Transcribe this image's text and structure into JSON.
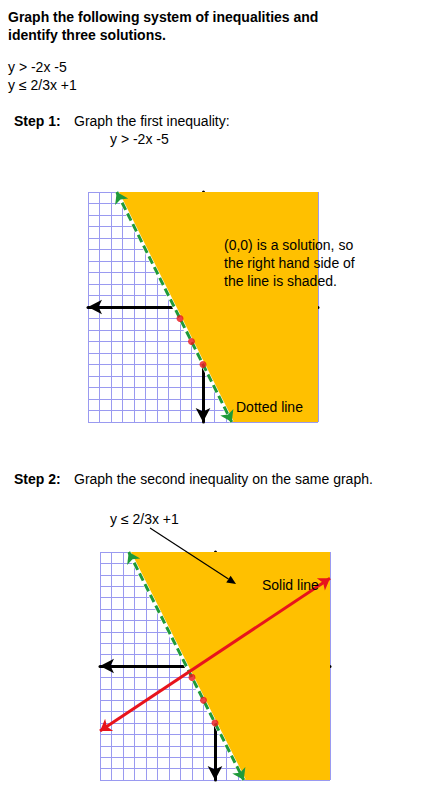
{
  "header": {
    "title": "Graph the following system of inequalities and identify three solutions.",
    "inequalities": [
      "y > -2x -5",
      "y ≤ 2/3x +1"
    ]
  },
  "steps": [
    {
      "label": "Step 1:",
      "text": "Graph the first inequality:",
      "inequality": "y > -2x -5"
    },
    {
      "label": "Step 2:",
      "text": "Graph the second inequality on the same graph."
    }
  ],
  "chart_data": [
    {
      "type": "line",
      "xlim": [
        -10,
        10
      ],
      "ylim": [
        -10,
        10
      ],
      "xticks": [
        -10,
        -9,
        -8,
        -7,
        -6,
        -5,
        -4,
        -3,
        -2,
        -1,
        0,
        1,
        2,
        3,
        4,
        5,
        6,
        7,
        8,
        9,
        10
      ],
      "yticks": [
        -10,
        -9,
        -8,
        -7,
        -6,
        -5,
        -4,
        -3,
        -2,
        -1,
        0,
        1,
        2,
        3,
        4,
        5,
        6,
        7,
        8,
        9,
        10
      ],
      "grid": true,
      "tick_labels": false,
      "series": [
        {
          "type": "area",
          "color": "#ffc000",
          "x": [
            -7.5,
            10,
            10,
            2.5
          ],
          "values": [
            10,
            10,
            -10,
            -10
          ]
        },
        {
          "type": "line",
          "color": "#1f9a3a",
          "line_style": "dashed",
          "x": [
            -7.5,
            2.5
          ],
          "values": [
            10,
            -10
          ]
        },
        {
          "type": "scatter",
          "color": "#e8141c",
          "marker": "circle",
          "x": [
            -2,
            -1,
            0
          ],
          "values": [
            -1,
            -3,
            -5
          ]
        }
      ],
      "annotations": [
        "(0,0) is a solution, so the right hand side of the line is shaded.",
        "Dotted line"
      ]
    },
    {
      "type": "line",
      "xlim": [
        -10,
        10
      ],
      "ylim": [
        -10,
        10
      ],
      "xticks": [
        -10,
        -9,
        -8,
        -7,
        -6,
        -5,
        -4,
        -3,
        -2,
        -1,
        0,
        1,
        2,
        3,
        4,
        5,
        6,
        7,
        8,
        9,
        10
      ],
      "yticks": [
        -10,
        -9,
        -8,
        -7,
        -6,
        -5,
        -4,
        -3,
        -2,
        -1,
        0,
        1,
        2,
        3,
        4,
        5,
        6,
        7,
        8,
        9,
        10
      ],
      "grid": true,
      "tick_labels": false,
      "series": [
        {
          "type": "area",
          "color": "#ffc000",
          "x": [
            -7.5,
            10,
            10,
            2.5
          ],
          "values": [
            10,
            10,
            -10,
            -10
          ]
        },
        {
          "type": "line",
          "color": "#1f9a3a",
          "line_style": "dashed",
          "x": [
            -7.5,
            2.5
          ],
          "values": [
            10,
            -10
          ]
        },
        {
          "type": "line",
          "color": "#e8141c",
          "line_style": "solid",
          "x": [
            -10,
            10
          ],
          "values": [
            -5.7,
            7.7
          ]
        },
        {
          "type": "scatter",
          "color": "#e8141c",
          "marker": "circle",
          "x": [
            -2,
            -1,
            0
          ],
          "values": [
            -1,
            -3,
            -5
          ]
        }
      ],
      "annotations": [
        "y ≤ 2/3x +1",
        "Solid line"
      ]
    }
  ]
}
